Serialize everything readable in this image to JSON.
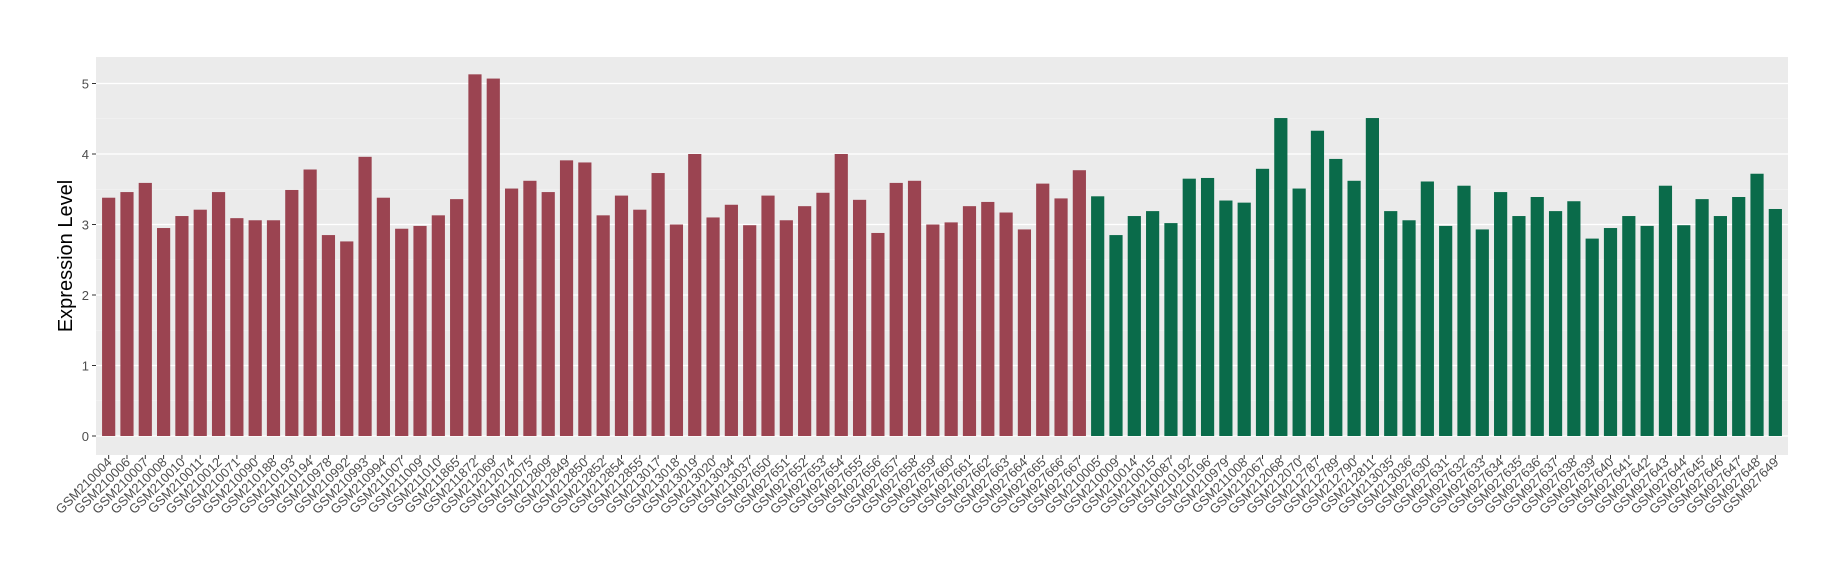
{
  "chart_data": {
    "type": "bar",
    "ylabel": "Expression Level",
    "xlabel": "",
    "ylim": [
      0,
      5.2
    ],
    "yticks": [
      "0",
      "1",
      "2",
      "3",
      "4",
      "5"
    ],
    "grid": true,
    "colors": {
      "group_a": "#9b4451",
      "group_b": "#0a6b4a",
      "panel": "#ebebeb",
      "grid": "#ffffff"
    },
    "categories": [
      "GSM210004",
      "GSM210006",
      "GSM210007",
      "GSM210008",
      "GSM210010",
      "GSM210011",
      "GSM210012",
      "GSM210071",
      "GSM210090",
      "GSM210188",
      "GSM210193",
      "GSM210194",
      "GSM210978",
      "GSM210992",
      "GSM210993",
      "GSM210994",
      "GSM211007",
      "GSM211009",
      "GSM211010",
      "GSM211865",
      "GSM211872",
      "GSM212069",
      "GSM212074",
      "GSM212075",
      "GSM212809",
      "GSM212849",
      "GSM212850",
      "GSM212852",
      "GSM212854",
      "GSM212855",
      "GSM213017",
      "GSM213018",
      "GSM213019",
      "GSM213020",
      "GSM213034",
      "GSM213037",
      "GSM927650",
      "GSM927651",
      "GSM927652",
      "GSM927653",
      "GSM927654",
      "GSM927655",
      "GSM927656",
      "GSM927657",
      "GSM927658",
      "GSM927659",
      "GSM927660",
      "GSM927661",
      "GSM927662",
      "GSM927663",
      "GSM927664",
      "GSM927665",
      "GSM927666",
      "GSM927667",
      "GSM210005",
      "GSM210009",
      "GSM210014",
      "GSM210015",
      "GSM210087",
      "GSM210192",
      "GSM210196",
      "GSM210979",
      "GSM211008",
      "GSM212067",
      "GSM212068",
      "GSM212070",
      "GSM212787",
      "GSM212789",
      "GSM212790",
      "GSM212811",
      "GSM213035",
      "GSM213036",
      "GSM927630",
      "GSM927631",
      "GSM927632",
      "GSM927633",
      "GSM927634",
      "GSM927635",
      "GSM927636",
      "GSM927637",
      "GSM927638",
      "GSM927639",
      "GSM927640",
      "GSM927641",
      "GSM927642",
      "GSM927643",
      "GSM927644",
      "GSM927645",
      "GSM927646",
      "GSM927647",
      "GSM927648",
      "GSM927649"
    ],
    "values": [
      3.38,
      3.46,
      3.59,
      2.95,
      3.12,
      3.21,
      3.46,
      3.09,
      3.06,
      3.06,
      3.49,
      3.78,
      2.85,
      2.76,
      3.96,
      3.38,
      2.94,
      2.98,
      3.13,
      3.36,
      5.13,
      5.07,
      3.51,
      3.62,
      3.46,
      3.91,
      3.88,
      3.13,
      3.41,
      3.21,
      3.73,
      3.0,
      4.0,
      3.1,
      3.28,
      2.99,
      3.41,
      3.06,
      3.26,
      3.45,
      4.0,
      3.35,
      2.88,
      3.59,
      3.62,
      3.0,
      3.03,
      3.26,
      3.32,
      3.17,
      2.93,
      3.58,
      3.37,
      3.77,
      3.4,
      2.85,
      3.12,
      3.19,
      3.02,
      3.65,
      3.66,
      3.34,
      3.31,
      3.79,
      4.51,
      3.51,
      4.33,
      3.93,
      3.62,
      4.51,
      3.19,
      3.06,
      3.61,
      2.98,
      3.55,
      2.93,
      3.46,
      3.12,
      3.39,
      3.19,
      3.33,
      2.8,
      2.95,
      3.12,
      2.98,
      3.55,
      2.99,
      3.36,
      3.12,
      3.39,
      3.72,
      3.22
    ],
    "groups": [
      "a",
      "a",
      "a",
      "a",
      "a",
      "a",
      "a",
      "a",
      "a",
      "a",
      "a",
      "a",
      "a",
      "a",
      "a",
      "a",
      "a",
      "a",
      "a",
      "a",
      "a",
      "a",
      "a",
      "a",
      "a",
      "a",
      "a",
      "a",
      "a",
      "a",
      "a",
      "a",
      "a",
      "a",
      "a",
      "a",
      "a",
      "a",
      "a",
      "a",
      "a",
      "a",
      "a",
      "a",
      "a",
      "a",
      "a",
      "a",
      "a",
      "a",
      "a",
      "a",
      "a",
      "a",
      "b",
      "b",
      "b",
      "b",
      "b",
      "b",
      "b",
      "b",
      "b",
      "b",
      "b",
      "b",
      "b",
      "b",
      "b",
      "b",
      "b",
      "b",
      "b",
      "b",
      "b",
      "b",
      "b",
      "b",
      "b",
      "b",
      "b",
      "b",
      "b",
      "b",
      "b",
      "b",
      "b",
      "b",
      "b",
      "b",
      "b",
      "b"
    ]
  }
}
